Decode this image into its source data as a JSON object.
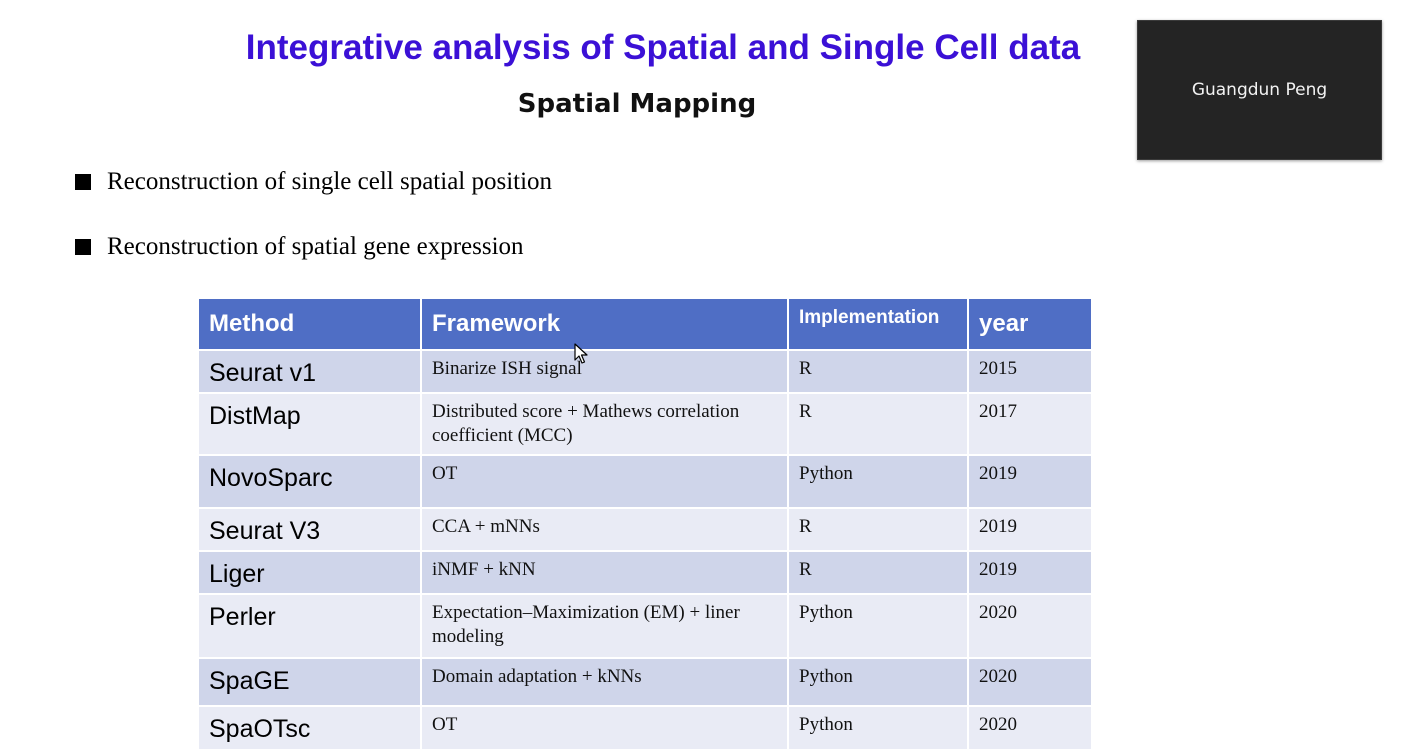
{
  "slide": {
    "title": "Integrative analysis of Spatial and Single Cell data",
    "subtitle": "Spatial Mapping",
    "bullets": [
      "Reconstruction of single cell spatial position",
      "Reconstruction of spatial gene expression"
    ]
  },
  "table": {
    "headers": [
      "Method",
      "Framework",
      "Implementation",
      "year"
    ],
    "rows": [
      [
        "Seurat v1",
        "Binarize ISH signal",
        "R",
        "2015"
      ],
      [
        "DistMap",
        "Distributed score + Mathews correlation coefficient (MCC)",
        "R",
        "2017"
      ],
      [
        "NovoSparc",
        "OT",
        "Python",
        "2019"
      ],
      [
        "Seurat V3",
        "CCA + mNNs",
        "R",
        "2019"
      ],
      [
        "Liger",
        "iNMF + kNN",
        "R",
        "2019"
      ],
      [
        "Perler",
        "Expectation–Maximization (EM) + liner modeling",
        "Python",
        "2020"
      ],
      [
        "SpaGE",
        "Domain adaptation + kNNs",
        "Python",
        "2020"
      ],
      [
        "SpaOTsc",
        "OT",
        "Python",
        "2020"
      ]
    ]
  },
  "video": {
    "participant_name": "Guangdun Peng"
  },
  "colors": {
    "title": "#3b10d6",
    "header_bg": "#4f6ec5",
    "row_odd": "#cfd5ea",
    "row_even": "#e9ebf5",
    "video_bg": "#242424"
  },
  "icons": {
    "cursor": "mouse-pointer-icon",
    "bullet": "square-bullet-icon"
  }
}
